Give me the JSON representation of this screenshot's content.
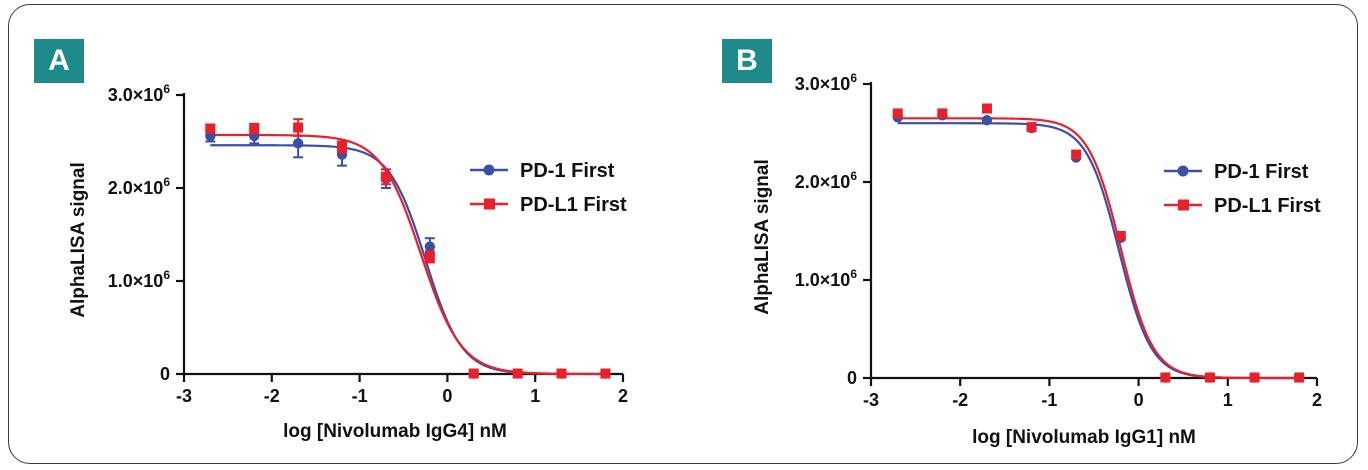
{
  "panels": [
    {
      "label": "A",
      "chart_data": {
        "type": "scatter",
        "xlabel": "log [Nivolumab IgG4] nM",
        "ylabel": "AlphaLISA signal",
        "xlim": [
          -3,
          2
        ],
        "ylim": [
          0,
          3000000
        ],
        "x_ticks": [
          -3,
          -2,
          -1,
          0,
          1,
          2
        ],
        "x_tick_labels": [
          "-3",
          "-2",
          "-1",
          "0",
          "1",
          "2"
        ],
        "y_ticks": [
          0,
          1000000,
          2000000,
          3000000
        ],
        "y_tick_labels": [
          "0",
          "1.0×10",
          "2.0×10",
          "3.0×10"
        ],
        "y_tick_exponent": "6",
        "legend_position": "center-right",
        "series": [
          {
            "name": "PD-1 First",
            "color": "#3b4fa8",
            "marker": "circle",
            "x": [
              -2.7,
              -2.2,
              -1.7,
              -1.2,
              -0.7,
              -0.2,
              0.3,
              0.8,
              1.3,
              1.8
            ],
            "y": [
              2560000,
              2560000,
              2480000,
              2360000,
              2100000,
              1370000,
              5000,
              5000,
              5000,
              5000
            ],
            "err": [
              60000,
              80000,
              150000,
              120000,
              100000,
              90000,
              0,
              0,
              0,
              0
            ],
            "fit": {
              "top": 2460000,
              "bottom": 0,
              "logIC50": -0.25,
              "hill": -2.1
            }
          },
          {
            "name": "PD-L1 First",
            "color": "#e8202a",
            "marker": "square",
            "x": [
              -2.7,
              -2.2,
              -1.7,
              -1.2,
              -0.7,
              -0.2,
              0.3,
              0.8,
              1.3,
              1.8
            ],
            "y": [
              2640000,
              2640000,
              2650000,
              2440000,
              2120000,
              1260000,
              5000,
              5000,
              5000,
              5000
            ],
            "err": [
              40000,
              50000,
              90000,
              60000,
              80000,
              60000,
              0,
              0,
              0,
              0
            ],
            "fit": {
              "top": 2570000,
              "bottom": 0,
              "logIC50": -0.3,
              "hill": -1.9
            }
          }
        ]
      }
    },
    {
      "label": "B",
      "chart_data": {
        "type": "scatter",
        "xlabel": "log [Nivolumab IgG1] nM",
        "ylabel": "AlphaLISA signal",
        "xlim": [
          -3,
          2
        ],
        "ylim": [
          0,
          3000000
        ],
        "x_ticks": [
          -3,
          -2,
          -1,
          0,
          1,
          2
        ],
        "x_tick_labels": [
          "-3",
          "-2",
          "-1",
          "0",
          "1",
          "2"
        ],
        "y_ticks": [
          0,
          1000000,
          2000000,
          3000000
        ],
        "y_tick_labels": [
          "0",
          "1.0×10",
          "2.0×10",
          "3.0×10"
        ],
        "y_tick_exponent": "6",
        "legend_position": "center-right",
        "series": [
          {
            "name": "PD-1 First",
            "color": "#3b4fa8",
            "marker": "circle",
            "x": [
              -2.7,
              -2.2,
              -1.7,
              -1.2,
              -0.7,
              -0.2,
              0.3,
              0.8,
              1.3,
              1.8
            ],
            "y": [
              2660000,
              2680000,
              2630000,
              2550000,
              2250000,
              1430000,
              5000,
              5000,
              5000,
              5000
            ],
            "err": [
              0,
              0,
              0,
              0,
              0,
              0,
              0,
              0,
              0,
              0
            ],
            "fit": {
              "top": 2600000,
              "bottom": 0,
              "logIC50": -0.22,
              "hill": -2.4
            }
          },
          {
            "name": "PD-L1 First",
            "color": "#e8202a",
            "marker": "square",
            "x": [
              -2.7,
              -2.2,
              -1.7,
              -1.2,
              -0.7,
              -0.2,
              0.3,
              0.8,
              1.3,
              1.8
            ],
            "y": [
              2700000,
              2700000,
              2750000,
              2560000,
              2280000,
              1450000,
              5000,
              5000,
              5000,
              5000
            ],
            "err": [
              0,
              0,
              0,
              0,
              0,
              0,
              0,
              0,
              0,
              0
            ],
            "fit": {
              "top": 2650000,
              "bottom": 0,
              "logIC50": -0.2,
              "hill": -2.4
            }
          }
        ]
      }
    }
  ]
}
